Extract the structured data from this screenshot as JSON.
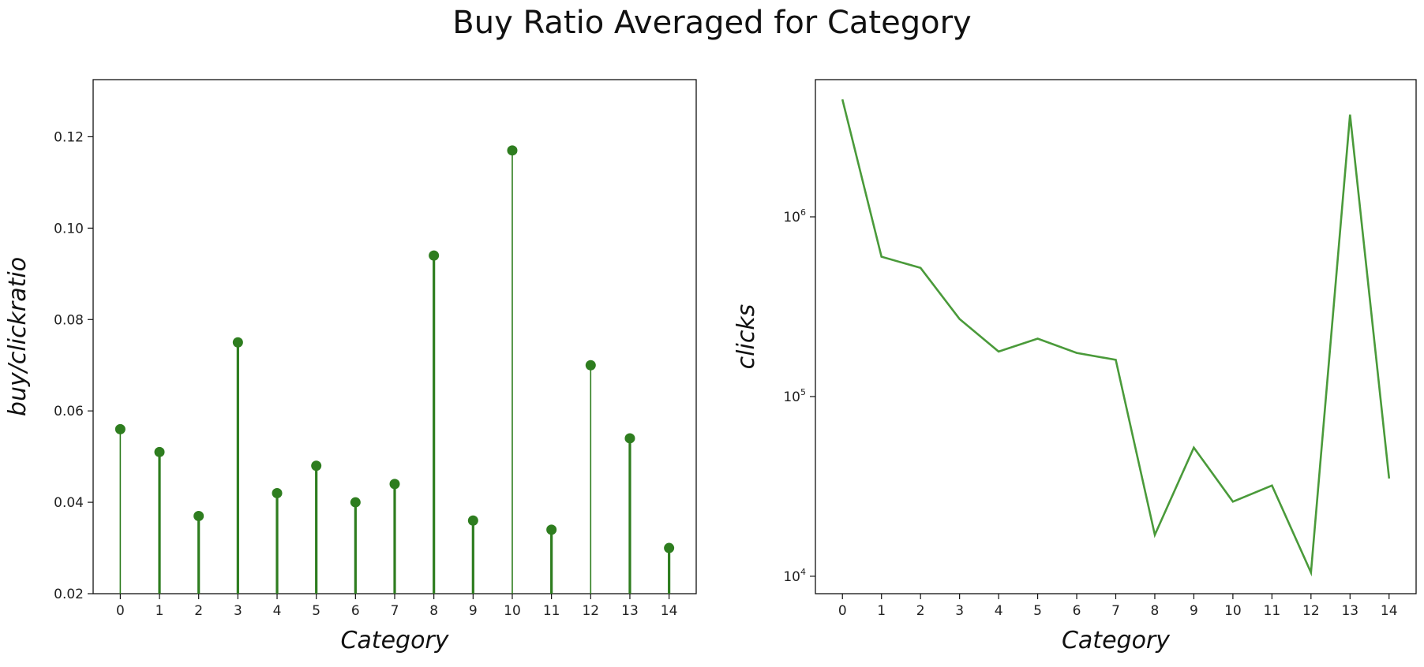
{
  "suptitle": "Buy Ratio Averaged for Category",
  "chart_data": [
    {
      "type": "stem",
      "title": "",
      "xlabel": "Category",
      "ylabel": "buy/clickratio",
      "color": "#2e7d1f",
      "categories": [
        "0",
        "1",
        "2",
        "3",
        "4",
        "5",
        "6",
        "7",
        "8",
        "9",
        "10",
        "11",
        "12",
        "13",
        "14"
      ],
      "values": [
        0.056,
        0.051,
        0.037,
        0.075,
        0.042,
        0.048,
        0.04,
        0.044,
        0.094,
        0.036,
        0.117,
        0.034,
        0.07,
        0.054,
        0.03
      ],
      "ylim": [
        0.02,
        0.1325
      ],
      "yticks": [
        0.02,
        0.04,
        0.06,
        0.08,
        0.1,
        0.12
      ],
      "ytick_labels": [
        "0.02",
        "0.04",
        "0.06",
        "0.08",
        "0.10",
        "0.12"
      ],
      "yscale": "linear",
      "grid": false
    },
    {
      "type": "line",
      "title": "",
      "xlabel": "Category",
      "ylabel": "clicks",
      "color": "#4a9a3a",
      "categories": [
        "0",
        "1",
        "2",
        "3",
        "4",
        "5",
        "6",
        "7",
        "8",
        "9",
        "10",
        "11",
        "12",
        "13",
        "14"
      ],
      "values": [
        4500000,
        600000,
        520000,
        270000,
        178000,
        210000,
        175000,
        160000,
        17000,
        52000,
        26000,
        32000,
        10500,
        3700000,
        35000
      ],
      "ylim": [
        8000,
        5800000
      ],
      "yscale": "log",
      "yticks": [
        10000,
        100000,
        1000000
      ],
      "ytick_labels": [
        {
          "base": "10",
          "exp": "4"
        },
        {
          "base": "10",
          "exp": "5"
        },
        {
          "base": "10",
          "exp": "6"
        }
      ],
      "grid": false
    }
  ]
}
